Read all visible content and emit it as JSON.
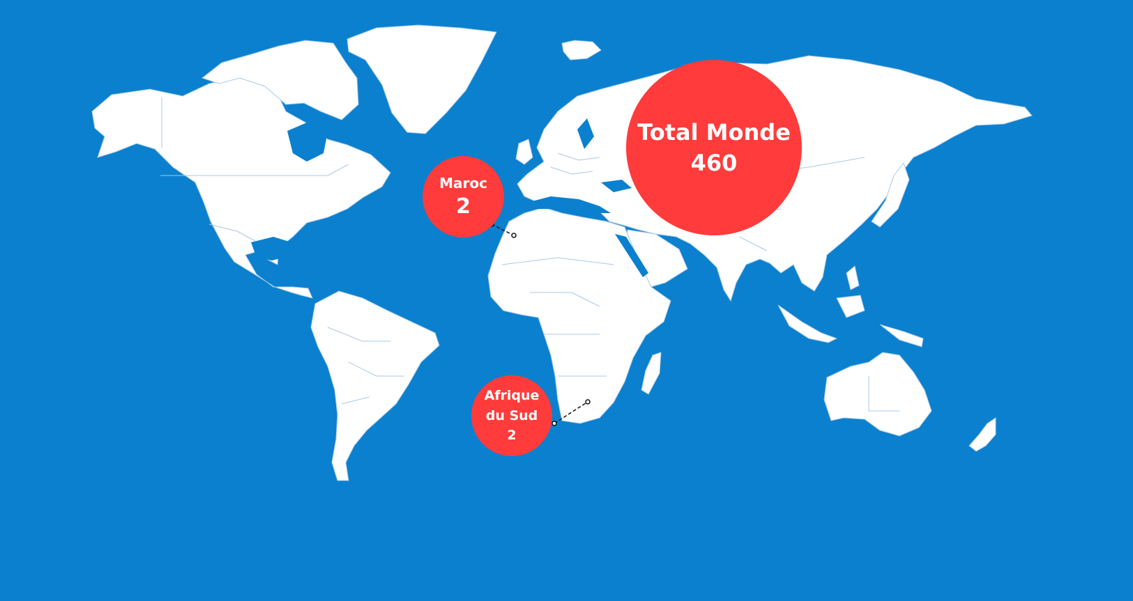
{
  "colors": {
    "ocean": "#0a80cf",
    "land": "#ffffff",
    "border": "#a9c8e6",
    "bubble": "#ff3b3b",
    "leader": "#111111"
  },
  "bubbles": {
    "world": {
      "label": "Total Monde",
      "value": "460"
    },
    "maroc": {
      "label": "Maroc",
      "value": "2"
    },
    "south_africa": {
      "label": "Afrique du Sud",
      "value": "2"
    }
  }
}
